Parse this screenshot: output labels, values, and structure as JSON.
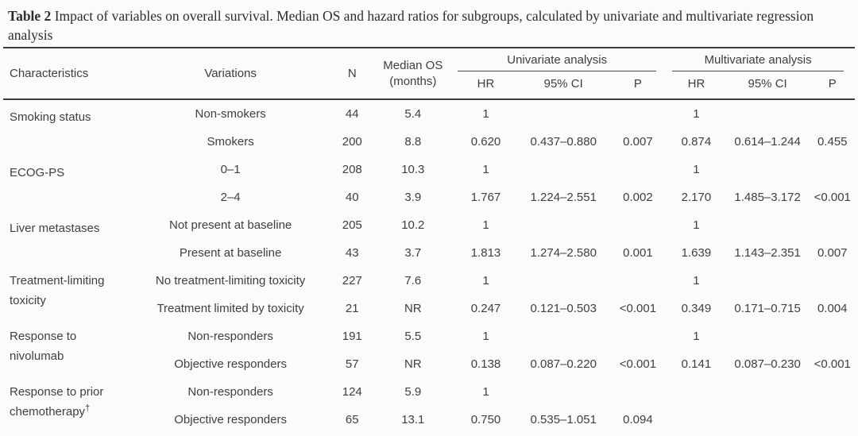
{
  "caption": {
    "label": "Table 2",
    "text": "Impact of variables on overall survival. Median OS and hazard ratios for subgroups, calculated by univariate and multivariate regression analysis"
  },
  "header": {
    "characteristics": "Characteristics",
    "variations": "Variations",
    "n": "N",
    "median_os": "Median OS",
    "median_os_unit": "(months)",
    "univariate": "Univariate analysis",
    "multivariate": "Multivariate analysis",
    "hr": "HR",
    "ci": "95% CI",
    "p": "P"
  },
  "rows": [
    {
      "characteristic": "Smoking status",
      "dagger": "",
      "variation": "Non-smokers",
      "n": "44",
      "median_os": "5.4",
      "uni_hr": "1",
      "uni_ci": "",
      "uni_p": "",
      "multi_hr": "1",
      "multi_ci": "",
      "multi_p": ""
    },
    {
      "variation": "Smokers",
      "n": "200",
      "median_os": "8.8",
      "uni_hr": "0.620",
      "uni_ci": "0.437–0.880",
      "uni_p": "0.007",
      "multi_hr": "0.874",
      "multi_ci": "0.614–1.244",
      "multi_p": "0.455"
    },
    {
      "characteristic": "ECOG-PS",
      "dagger": "",
      "variation": "0–1",
      "n": "208",
      "median_os": "10.3",
      "uni_hr": "1",
      "uni_ci": "",
      "uni_p": "",
      "multi_hr": "1",
      "multi_ci": "",
      "multi_p": ""
    },
    {
      "variation": "2–4",
      "n": "40",
      "median_os": "3.9",
      "uni_hr": "1.767",
      "uni_ci": "1.224–2.551",
      "uni_p": "0.002",
      "multi_hr": "2.170",
      "multi_ci": "1.485–3.172",
      "multi_p": "<0.001"
    },
    {
      "characteristic": "Liver metastases",
      "dagger": "",
      "variation": "Not present at baseline",
      "n": "205",
      "median_os": "10.2",
      "uni_hr": "1",
      "uni_ci": "",
      "uni_p": "",
      "multi_hr": "1",
      "multi_ci": "",
      "multi_p": ""
    },
    {
      "variation": "Present at baseline",
      "n": "43",
      "median_os": "3.7",
      "uni_hr": "1.813",
      "uni_ci": "1.274–2.580",
      "uni_p": "0.001",
      "multi_hr": "1.639",
      "multi_ci": "1.143–2.351",
      "multi_p": "0.007"
    },
    {
      "characteristic": "Treatment-limiting toxicity",
      "dagger": "",
      "variation": "No treatment-limiting toxicity",
      "n": "227",
      "median_os": "7.6",
      "uni_hr": "1",
      "uni_ci": "",
      "uni_p": "",
      "multi_hr": "1",
      "multi_ci": "",
      "multi_p": ""
    },
    {
      "variation": "Treatment limited by toxicity",
      "n": "21",
      "median_os": "NR",
      "uni_hr": "0.247",
      "uni_ci": "0.121–0.503",
      "uni_p": "<0.001",
      "multi_hr": "0.349",
      "multi_ci": "0.171–0.715",
      "multi_p": "0.004"
    },
    {
      "characteristic": "Response to nivolumab",
      "dagger": "",
      "variation": "Non-responders",
      "n": "191",
      "median_os": "5.5",
      "uni_hr": "1",
      "uni_ci": "",
      "uni_p": "",
      "multi_hr": "1",
      "multi_ci": "",
      "multi_p": ""
    },
    {
      "variation": "Objective responders",
      "n": "57",
      "median_os": "NR",
      "uni_hr": "0.138",
      "uni_ci": "0.087–0.220",
      "uni_p": "<0.001",
      "multi_hr": "0.141",
      "multi_ci": "0.087–0.230",
      "multi_p": "<0.001"
    },
    {
      "characteristic": "Response to prior chemotherapy",
      "dagger": "†",
      "variation": "Non-responders",
      "n": "124",
      "median_os": "5.9",
      "uni_hr": "1",
      "uni_ci": "",
      "uni_p": "",
      "multi_hr": "",
      "multi_ci": "",
      "multi_p": ""
    },
    {
      "variation": "Objective responders",
      "n": "65",
      "median_os": "13.1",
      "uni_hr": "0.750",
      "uni_ci": "0.535–1.051",
      "uni_p": "0.094",
      "multi_hr": "",
      "multi_ci": "",
      "multi_p": ""
    }
  ]
}
